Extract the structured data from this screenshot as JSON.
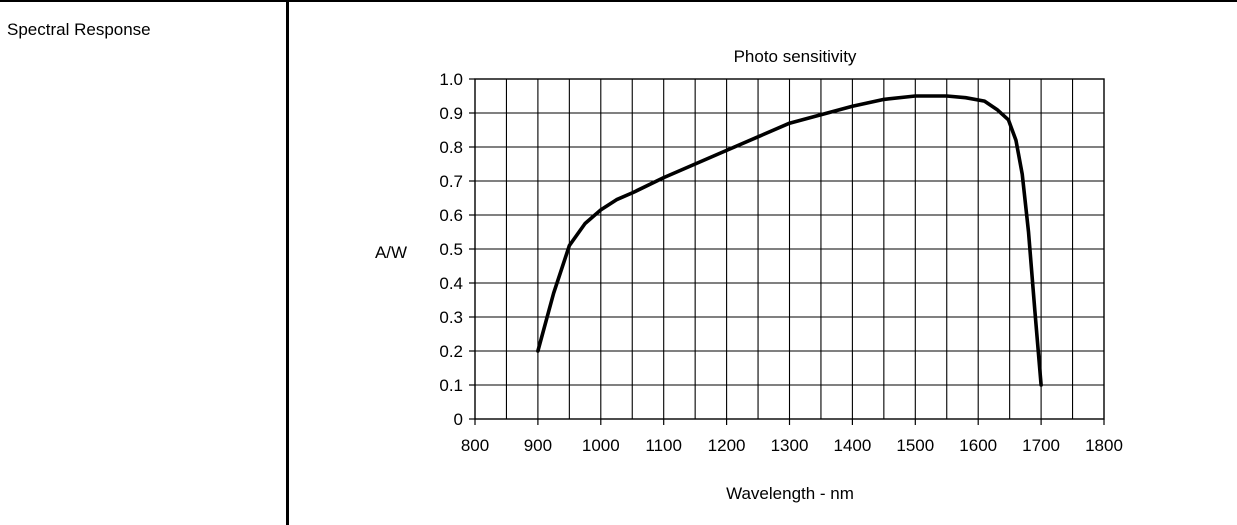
{
  "row_label": "Spectral Response",
  "chart_data": {
    "type": "line",
    "title": "Photo sensitivity",
    "xlabel": "Wavelength - nm",
    "ylabel": "A/W",
    "xlim": [
      800,
      1800
    ],
    "ylim": [
      0,
      1.0
    ],
    "x_ticks": [
      800,
      900,
      1000,
      1100,
      1200,
      1300,
      1400,
      1500,
      1600,
      1700,
      1800
    ],
    "y_ticks": [
      0,
      0.1,
      0.2,
      0.3,
      0.4,
      0.5,
      0.6,
      0.7,
      0.8,
      0.9,
      1.0
    ],
    "x_tick_labels": [
      "800",
      "900",
      "1000",
      "1100",
      "1200",
      "1300",
      "1400",
      "1500",
      "1600",
      "1700",
      "1800"
    ],
    "y_tick_labels": [
      "0",
      "0.1",
      "0.2",
      "0.3",
      "0.4",
      "0.5",
      "0.6",
      "0.7",
      "0.8",
      "0.9",
      "1.0"
    ],
    "grid": true,
    "x_grid_step": 50,
    "y_grid_step": 0.1,
    "line_color": "#000000",
    "series": [
      {
        "x": [
          900,
          925,
          950,
          975,
          1000,
          1025,
          1050,
          1100,
          1150,
          1200,
          1250,
          1300,
          1350,
          1400,
          1450,
          1500,
          1550,
          1580,
          1610,
          1630,
          1648,
          1660,
          1670,
          1680,
          1690,
          1700
        ],
        "values": [
          0.2,
          0.37,
          0.51,
          0.575,
          0.615,
          0.645,
          0.665,
          0.71,
          0.75,
          0.79,
          0.83,
          0.87,
          0.895,
          0.92,
          0.94,
          0.95,
          0.95,
          0.945,
          0.935,
          0.91,
          0.88,
          0.82,
          0.72,
          0.55,
          0.32,
          0.1
        ]
      }
    ]
  }
}
